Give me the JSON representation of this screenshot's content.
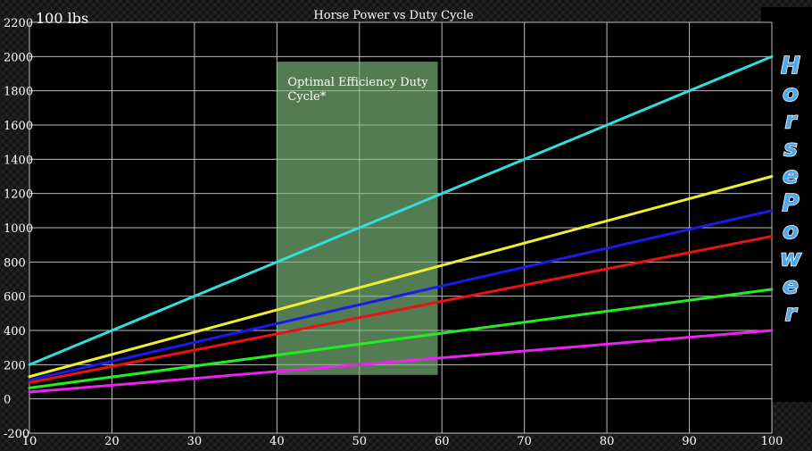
{
  "chart_data": {
    "type": "line",
    "title": "Horse Power vs Duty Cycle",
    "unit_label": "100 lbs",
    "side_label": "HorsePower",
    "xlim": [
      10,
      100
    ],
    "ylim": [
      -200,
      2200
    ],
    "x_ticks": [
      10,
      20,
      30,
      40,
      50,
      60,
      70,
      80,
      90,
      100
    ],
    "y_ticks": [
      -200,
      0,
      200,
      400,
      600,
      800,
      1000,
      1200,
      1400,
      1600,
      1800,
      2000,
      2200
    ],
    "grid": true,
    "highlight_region": {
      "label": "Optimal Efficiency Duty Cycle*",
      "x_range": [
        40,
        59.5
      ],
      "y_range": [
        140,
        1970
      ],
      "color": "#7fbf7f"
    },
    "series": [
      {
        "color": "#33dddd",
        "x": [
          10,
          100
        ],
        "y": [
          200,
          2000
        ]
      },
      {
        "color": "#eeee33",
        "x": [
          10,
          100
        ],
        "y": [
          130,
          1300
        ]
      },
      {
        "color": "#1a1aee",
        "x": [
          10,
          100
        ],
        "y": [
          110,
          1100
        ]
      },
      {
        "color": "#ee1111",
        "x": [
          10,
          100
        ],
        "y": [
          95,
          950
        ]
      },
      {
        "color": "#22ee22",
        "x": [
          10,
          100
        ],
        "y": [
          64,
          640
        ]
      },
      {
        "color": "#ee22ee",
        "x": [
          10,
          100
        ],
        "y": [
          40,
          400
        ]
      }
    ]
  }
}
